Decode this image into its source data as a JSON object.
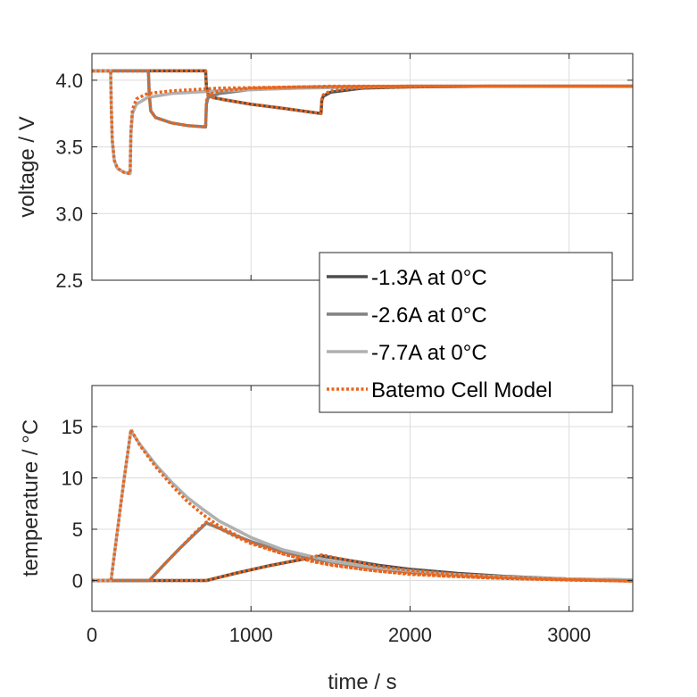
{
  "chart_data": [
    {
      "type": "line",
      "ylabel": "voltage / V",
      "xlabel": "",
      "xlim": [
        0,
        3400
      ],
      "ylim": [
        2.5,
        4.2
      ],
      "xticks": [
        0,
        1000,
        2000,
        3000
      ],
      "xtick_labels": [
        "",
        "",
        "",
        ""
      ],
      "yticks": [
        2.5,
        3.0,
        3.5,
        4.0
      ],
      "ytick_labels": [
        "2.5",
        "3.0",
        "3.5",
        "4.0"
      ],
      "grid": true,
      "series": [
        {
          "name": "-1.3A at 0°C",
          "color": "#4d4d4d",
          "x": [
            0,
            715,
            720,
            730,
            760,
            850,
            1000,
            1200,
            1440,
            1445,
            1455,
            1500,
            1700,
            2000,
            2500,
            3400
          ],
          "y": [
            4.07,
            4.07,
            3.95,
            3.9,
            3.87,
            3.85,
            3.82,
            3.79,
            3.75,
            3.85,
            3.88,
            3.91,
            3.94,
            3.95,
            3.955,
            3.955
          ]
        },
        {
          "name": "-2.6A at 0°C",
          "color": "#808080",
          "x": [
            0,
            355,
            360,
            370,
            400,
            500,
            600,
            715,
            720,
            730,
            800,
            1000,
            1500,
            2000,
            3400
          ],
          "y": [
            4.07,
            4.07,
            3.9,
            3.77,
            3.72,
            3.68,
            3.66,
            3.65,
            3.82,
            3.87,
            3.9,
            3.93,
            3.95,
            3.955,
            3.955
          ]
        },
        {
          "name": "-7.7A at 0°C",
          "color": "#b0b0b0",
          "x": [
            0,
            118,
            122,
            128,
            140,
            160,
            200,
            240,
            245,
            255,
            280,
            350,
            500,
            800,
            1300,
            2000,
            3400
          ],
          "y": [
            4.07,
            4.07,
            3.8,
            3.55,
            3.4,
            3.34,
            3.31,
            3.3,
            3.6,
            3.75,
            3.82,
            3.87,
            3.9,
            3.92,
            3.94,
            3.955,
            3.955
          ]
        },
        {
          "name": "Batemo Cell Model",
          "color": "#e8651c",
          "dashed": true,
          "x": [
            0,
            118,
            122,
            128,
            140,
            160,
            200,
            240,
            245,
            255,
            280,
            350,
            500,
            800,
            1300,
            2000,
            3400
          ],
          "y": [
            4.07,
            4.07,
            3.8,
            3.55,
            3.4,
            3.34,
            3.31,
            3.3,
            3.62,
            3.78,
            3.86,
            3.9,
            3.92,
            3.94,
            3.95,
            3.955,
            3.955
          ]
        },
        {
          "name": "Batemo Cell Model (2.6A)",
          "color": "#e8651c",
          "dashed": true,
          "legend": false,
          "x": [
            0,
            355,
            360,
            370,
            400,
            500,
            600,
            715,
            720,
            730,
            800,
            1000,
            1500,
            2000,
            3400
          ],
          "y": [
            4.07,
            4.07,
            3.9,
            3.77,
            3.72,
            3.68,
            3.66,
            3.65,
            3.84,
            3.89,
            3.92,
            3.94,
            3.955,
            3.955,
            3.955
          ]
        },
        {
          "name": "Batemo Cell Model (1.3A)",
          "color": "#e8651c",
          "dashed": true,
          "legend": false,
          "x": [
            0,
            715,
            720,
            730,
            760,
            850,
            1000,
            1200,
            1440,
            1445,
            1455,
            1500,
            1700,
            2000,
            2500,
            3400
          ],
          "y": [
            4.07,
            4.07,
            3.95,
            3.9,
            3.87,
            3.85,
            3.82,
            3.79,
            3.75,
            3.86,
            3.89,
            3.92,
            3.945,
            3.95,
            3.955,
            3.955
          ]
        }
      ]
    },
    {
      "type": "line",
      "ylabel": "temperature / °C",
      "xlabel": "time / s",
      "xlim": [
        0,
        3400
      ],
      "ylim": [
        -3,
        19
      ],
      "xticks": [
        0,
        1000,
        2000,
        3000
      ],
      "xtick_labels": [
        "0",
        "1000",
        "2000",
        "3000"
      ],
      "yticks": [
        0,
        5,
        10,
        15
      ],
      "ytick_labels": [
        "0",
        "5",
        "10",
        "15"
      ],
      "grid": true,
      "series": [
        {
          "name": "-1.3A at 0°C",
          "color": "#4d4d4d",
          "x": [
            0,
            720,
            900,
            1100,
            1300,
            1445,
            1600,
            1800,
            2000,
            2300,
            2600,
            3000,
            3400
          ],
          "y": [
            0,
            0,
            0.7,
            1.4,
            2.0,
            2.4,
            2.0,
            1.5,
            1.1,
            0.7,
            0.4,
            0.15,
            0.05
          ]
        },
        {
          "name": "-2.6A at 0°C",
          "color": "#808080",
          "x": [
            0,
            360,
            450,
            550,
            650,
            720,
            800,
            900,
            1000,
            1200,
            1400,
            1700,
            2000,
            2500,
            3000,
            3400
          ],
          "y": [
            0,
            0,
            1.5,
            3.1,
            4.6,
            5.6,
            5.1,
            4.4,
            3.8,
            2.8,
            2.1,
            1.3,
            0.8,
            0.35,
            0.15,
            0.05
          ]
        },
        {
          "name": "-7.7A at 0°C",
          "color": "#b0b0b0",
          "x": [
            0,
            120,
            160,
            200,
            245,
            300,
            400,
            500,
            600,
            700,
            800,
            1000,
            1200,
            1500,
            1800,
            2200,
            2600,
            3000,
            3400
          ],
          "y": [
            0,
            0,
            4.8,
            9.6,
            14.6,
            13.3,
            11.3,
            9.6,
            8.1,
            6.9,
            5.8,
            4.2,
            3.0,
            1.9,
            1.2,
            0.65,
            0.35,
            0.15,
            0.05
          ]
        },
        {
          "name": "Batemo Cell Model",
          "color": "#e8651c",
          "dashed": true,
          "x": [
            0,
            120,
            160,
            200,
            245,
            300,
            400,
            500,
            600,
            700,
            800,
            1000,
            1200,
            1500,
            1800,
            2200,
            2600,
            3000,
            3400
          ],
          "y": [
            0,
            0,
            4.8,
            9.6,
            14.7,
            13.2,
            11.1,
            9.3,
            7.7,
            6.4,
            5.3,
            3.7,
            2.6,
            1.5,
            0.9,
            0.45,
            0.2,
            0.05,
            -0.05
          ]
        },
        {
          "name": "Batemo Cell Model (2.6A)",
          "color": "#e8651c",
          "dashed": true,
          "legend": false,
          "x": [
            0,
            360,
            450,
            550,
            650,
            720,
            800,
            900,
            1000,
            1200,
            1400,
            1700,
            2000,
            2500,
            3000,
            3400
          ],
          "y": [
            0,
            0,
            1.5,
            3.1,
            4.7,
            5.7,
            5.1,
            4.3,
            3.6,
            2.6,
            1.8,
            1.1,
            0.6,
            0.25,
            0.05,
            -0.05
          ]
        },
        {
          "name": "Batemo Cell Model (1.3A)",
          "color": "#e8651c",
          "dashed": true,
          "legend": false,
          "x": [
            0,
            720,
            900,
            1100,
            1300,
            1445,
            1600,
            1800,
            2000,
            2300,
            2600,
            3000,
            3400
          ],
          "y": [
            0,
            0,
            0.7,
            1.4,
            2.0,
            2.5,
            2.0,
            1.4,
            1.0,
            0.6,
            0.3,
            0.1,
            -0.05
          ]
        }
      ]
    }
  ],
  "legend": {
    "placement": "right",
    "entries": [
      {
        "label": "-1.3A at 0°C",
        "color": "#4d4d4d",
        "dashed": false
      },
      {
        "label": "-2.6A at 0°C",
        "color": "#808080",
        "dashed": false
      },
      {
        "label": "-7.7A at 0°C",
        "color": "#b0b0b0",
        "dashed": false
      },
      {
        "label": "Batemo Cell Model",
        "color": "#e8651c",
        "dashed": true
      }
    ]
  }
}
